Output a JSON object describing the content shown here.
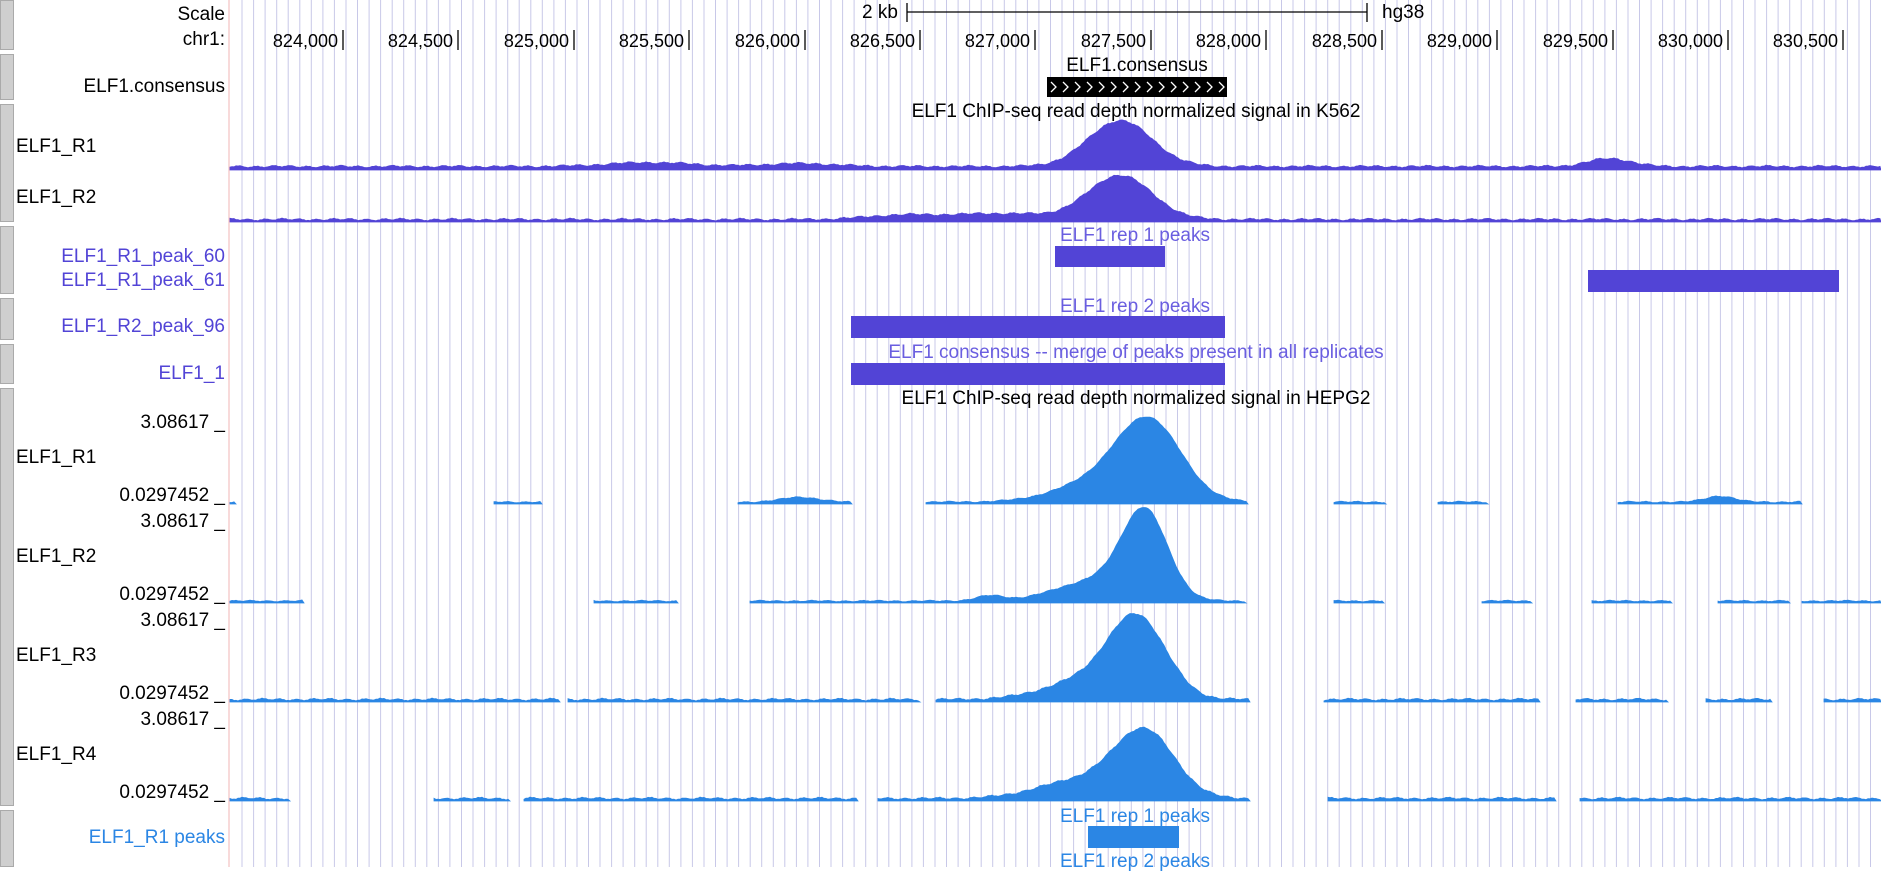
{
  "browser": {
    "scale_label": "Scale",
    "chrom_label": "chr1:",
    "scale_bar_text": "2 kb",
    "assembly": "hg38",
    "positions": [
      "824,000",
      "824,500",
      "825,000",
      "825,500",
      "826,000",
      "826,500",
      "827,000",
      "827,500",
      "828,000",
      "828,500",
      "829,000",
      "829,500",
      "830,000",
      "830,500"
    ]
  },
  "tracks": {
    "consensus_track": {
      "label": "ELF1.consensus",
      "feature_label": "ELF1.consensus"
    },
    "k562_signal": {
      "title": "ELF1 ChIP-seq read depth normalized signal in K562",
      "rows": [
        "ELF1_R1",
        "ELF1_R2"
      ]
    },
    "k562_rep1_peaks": {
      "title": "ELF1 rep 1 peaks",
      "items": [
        "ELF1_R1_peak_60",
        "ELF1_R1_peak_61"
      ]
    },
    "k562_rep2_peaks": {
      "title": "ELF1 rep 2 peaks",
      "items": [
        "ELF1_R2_peak_96"
      ]
    },
    "k562_consensus": {
      "title": "ELF1 consensus -- merge of peaks present in all replicates",
      "items": [
        "ELF1_1"
      ]
    },
    "hepg2_signal": {
      "title": "ELF1 ChIP-seq read depth normalized signal in HEPG2",
      "rows": [
        {
          "label": "ELF1_R1",
          "max": "3.08617 _",
          "min": "0.0297452 _"
        },
        {
          "label": "ELF1_R2",
          "max": "3.08617 _",
          "min": "0.0297452 _"
        },
        {
          "label": "ELF1_R3",
          "max": "3.08617 _",
          "min": "0.0297452 _"
        },
        {
          "label": "ELF1_R4",
          "max": "3.08617 _",
          "min": "0.0297452 _"
        }
      ]
    },
    "hepg2_rep1_peaks": {
      "title": "ELF1 rep 1 peaks",
      "label": "ELF1_R1 peaks"
    },
    "hepg2_rep2_peaks": {
      "title": "ELF1 rep 2 peaks"
    }
  },
  "colors": {
    "k562": "#5244d6",
    "hepg2": "#2b86e4",
    "grid": "#c8c8e8",
    "feature": "#000000"
  }
}
